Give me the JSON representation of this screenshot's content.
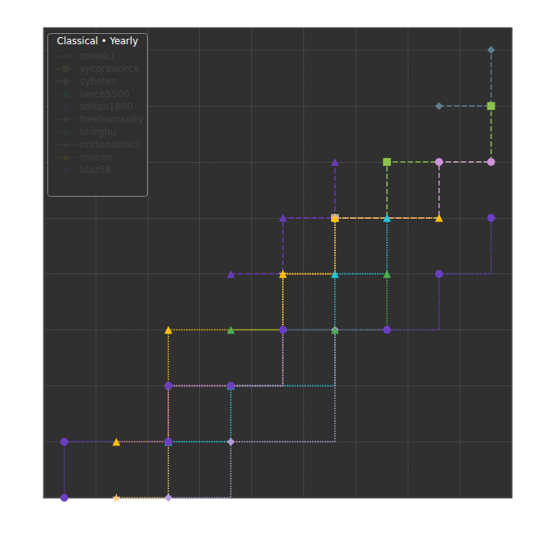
{
  "chart_data": {
    "type": "line",
    "title": "Classical • Yearly",
    "xlim": [
      0,
      18
    ],
    "xticks": [
      0,
      2,
      4,
      6,
      8,
      10,
      12,
      14,
      16,
      18
    ],
    "ylim": [
      0,
      8.4
    ],
    "yticks": [
      0,
      1,
      2,
      3,
      4,
      5,
      6,
      7,
      8
    ],
    "grid": true,
    "legend": "upper left",
    "tick_labels": false,
    "series": [
      {
        "name": "romek1",
        "color": "#5f7d8e",
        "marker": "diamond",
        "line_style": "dashed",
        "x": [
          15.2,
          17.2
        ],
        "values": [
          7,
          8
        ]
      },
      {
        "name": "sycoraxcirce",
        "color": "#8bc34a",
        "marker": "square",
        "line_style": "dashed",
        "x": [
          11.2,
          13.2,
          17.2
        ],
        "values": [
          5,
          6,
          7
        ]
      },
      {
        "name": "sybotes",
        "color": "#ce93d8",
        "marker": "circle",
        "line_style": "dashed",
        "x": [
          11.2,
          15.2,
          17.2
        ],
        "values": [
          5,
          6,
          6
        ]
      },
      {
        "name": "lance5500",
        "color": "#26c6da",
        "marker": "triangle",
        "line_style": "dotted",
        "x": [
          4.8,
          7.2,
          11.2,
          13.2
        ],
        "values": [
          1,
          2,
          4,
          5
        ]
      },
      {
        "name": "soltan1800",
        "color": "#673ab7",
        "marker": "triangle",
        "line_style": "dashed",
        "x": [
          7.2,
          9.2,
          11.2
        ],
        "values": [
          4,
          5,
          6
        ]
      },
      {
        "name": "freehumanity",
        "color": "#b39ddb",
        "marker": "diamond",
        "line_style": "dotted",
        "x": [
          4.8,
          7.2,
          11.2
        ],
        "values": [
          0,
          1,
          3
        ]
      },
      {
        "name": "bhirghu",
        "color": "#4caf50",
        "marker": "triangle",
        "line_style": "dotted",
        "x": [
          7.2,
          11.2,
          13.2
        ],
        "values": [
          3,
          3,
          4
        ]
      },
      {
        "name": "nortonattack",
        "color": "#ffcc80",
        "marker": "star",
        "line_style": "dotted",
        "x": [
          2.8,
          4.8,
          9.2,
          11.2
        ],
        "values": [
          0,
          2,
          4,
          5
        ]
      },
      {
        "name": "moiron",
        "color": "#ffc107",
        "marker": "triangle",
        "line_style": "dotted",
        "x": [
          2.8,
          4.8,
          9.2,
          11.2,
          15.2
        ],
        "values": [
          1,
          3,
          4,
          5,
          5
        ]
      },
      {
        "name": "blaz58",
        "color": "#6a3fc1",
        "marker": "circle",
        "line_style": "dotted",
        "x": [
          0.8,
          0.8,
          4.8,
          4.8,
          7.2,
          9.2,
          13.2,
          15.2,
          17.2
        ],
        "values": [
          0,
          1,
          1,
          2,
          2,
          3,
          3,
          4,
          5
        ]
      }
    ]
  }
}
